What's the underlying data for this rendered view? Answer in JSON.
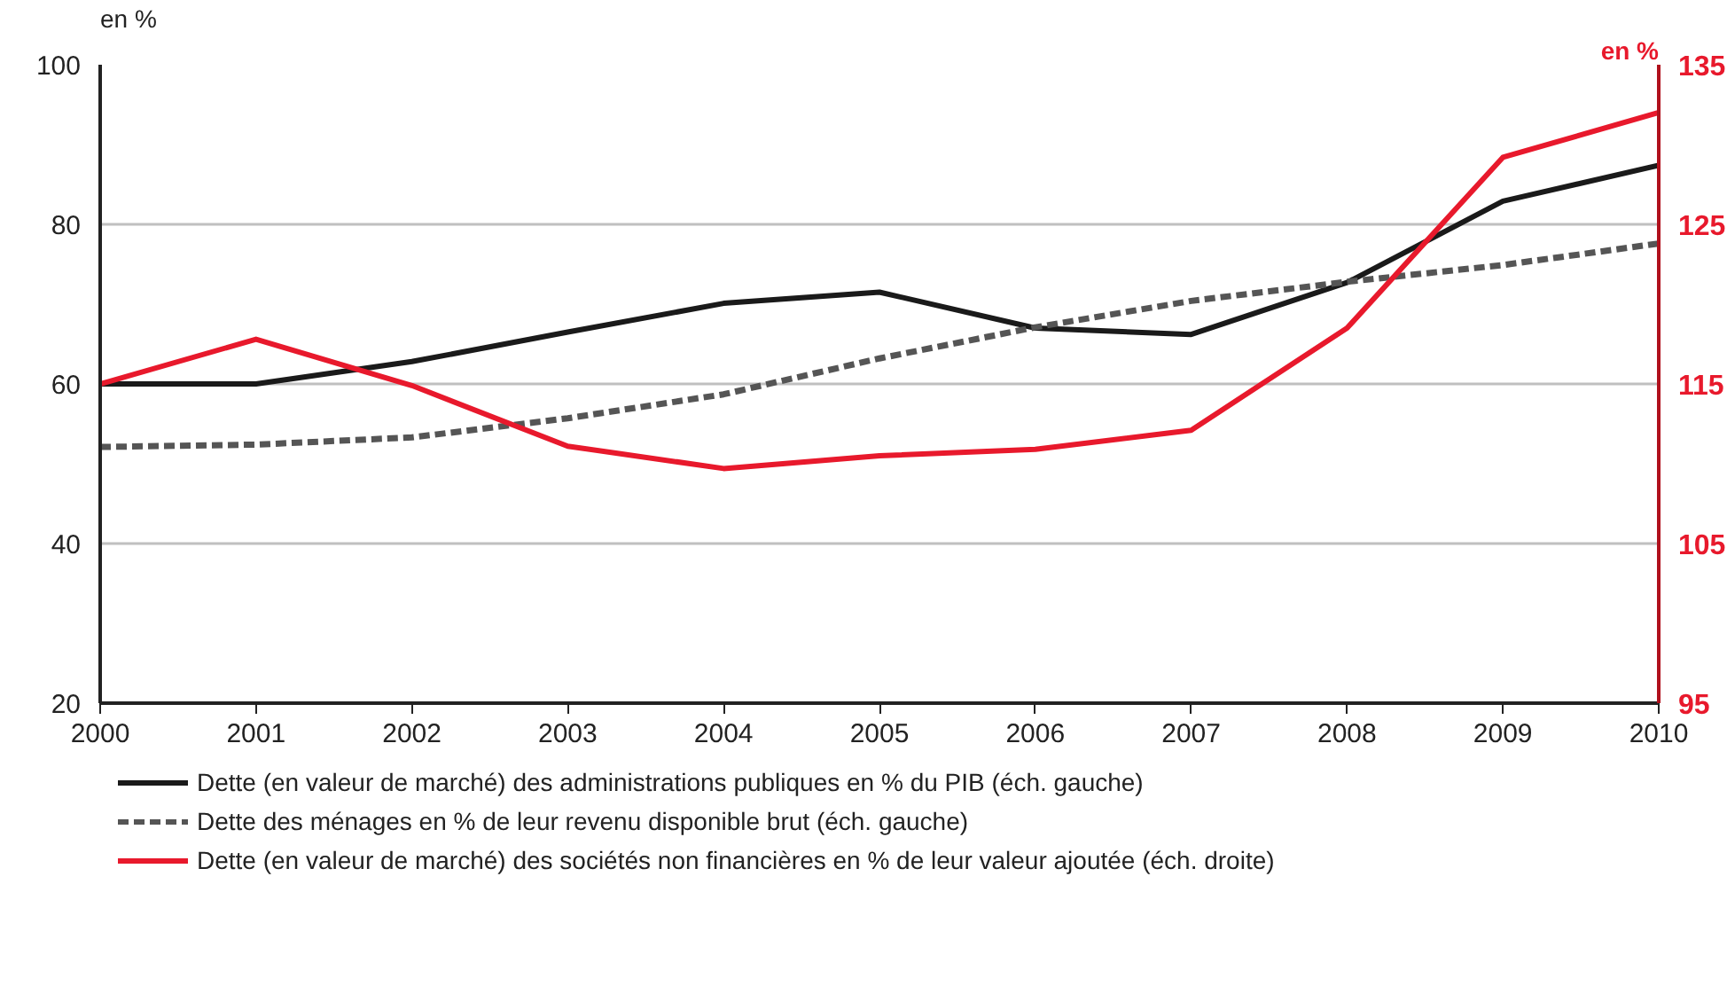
{
  "chart_data": {
    "type": "line",
    "x": [
      2000,
      2001,
      2002,
      2003,
      2004,
      2005,
      2006,
      2007,
      2008,
      2009,
      2010
    ],
    "ylabel": "en %",
    "y2label": "en %",
    "xlim": [
      2000,
      2010
    ],
    "xticks": [
      2000,
      2001,
      2002,
      2003,
      2004,
      2005,
      2006,
      2007,
      2008,
      2009,
      2010
    ],
    "ylim": [
      20,
      100
    ],
    "yticks": [
      20,
      40,
      60,
      80,
      100
    ],
    "y2lim": [
      95,
      135
    ],
    "y2ticks": [
      95,
      105,
      115,
      125,
      135
    ],
    "grid": "y",
    "legend": "bottom",
    "marker": "none",
    "series": [
      {
        "name": "Dette (en valeur de marché) des administrations publiques en % du PIB (éch. gauche)",
        "color": "#1a1a1a",
        "line_style": "solid",
        "values": [
          60,
          60,
          62.8,
          66.5,
          70.1,
          71.5,
          67.0,
          66.2,
          72.7,
          82.9,
          87.4
        ]
      },
      {
        "name": "Dette des ménages en % de leur revenu disponible brut (éch. gauche)",
        "color": "#555555",
        "line_style": "dashed",
        "values": [
          52.1,
          52.4,
          53.3,
          55.7,
          58.7,
          63.2,
          67.1,
          70.4,
          72.8,
          74.9,
          77.6
        ]
      },
      {
        "name": "Dette (en valeur de marché) des sociétés non financières en % de leur valeur ajoutée (éch. droite)",
        "color": "#e8192c",
        "line_style": "solid",
        "axis": "y2",
        "values": [
          115,
          117.8,
          114.9,
          111.1,
          109.7,
          110.5,
          110.9,
          112.1,
          118.5,
          129.2,
          132.0
        ]
      }
    ]
  }
}
